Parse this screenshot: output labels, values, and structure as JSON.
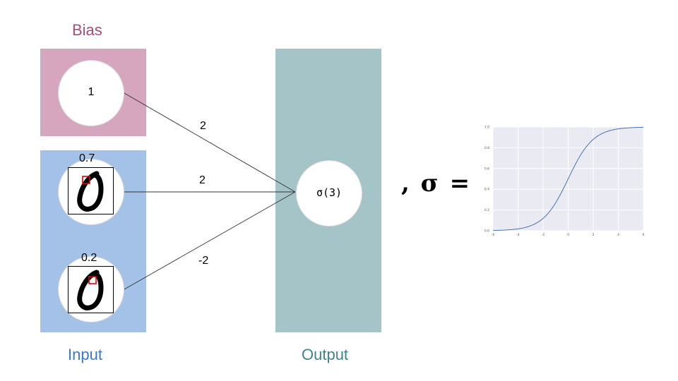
{
  "labels": {
    "bias": "Bias",
    "input": "Input",
    "output": "Output"
  },
  "bias_node": {
    "value": "1"
  },
  "input_nodes": [
    {
      "value": "0.7"
    },
    {
      "value": "0.2"
    }
  ],
  "output_node": {
    "value": "σ(3)"
  },
  "weights": [
    "2",
    "2",
    "-2"
  ],
  "sigma_equation": ", σ =",
  "colors": {
    "bias_panel": "#d5a6bd",
    "input_panel": "#a4c2e7",
    "output_panel": "#a4c4c8",
    "bias_label": "#a64d79",
    "input_label": "#3d78c7",
    "output_label": "#45818e",
    "curve": "#4c72b0",
    "plot_bg": "#eaeaf2",
    "highlight": "#e00000"
  },
  "chart_data": {
    "type": "line",
    "function": "sigmoid",
    "title": "",
    "xlabel": "",
    "ylabel": "",
    "xlim": [
      -6,
      6
    ],
    "ylim": [
      0,
      1
    ],
    "x_ticks": [
      "-6",
      "-4",
      "-2",
      "0",
      "2",
      "4",
      "6"
    ],
    "y_ticks": [
      "0.0",
      "0.2",
      "0.4",
      "0.6",
      "0.8",
      "1.0"
    ],
    "grid": true,
    "x": [
      -6,
      -5,
      -4,
      -3,
      -2,
      -1.5,
      -1,
      -0.5,
      0,
      0.5,
      1,
      1.5,
      2,
      3,
      4,
      5,
      6
    ],
    "y": [
      0.0025,
      0.0067,
      0.018,
      0.047,
      0.119,
      0.182,
      0.269,
      0.378,
      0.5,
      0.622,
      0.731,
      0.818,
      0.881,
      0.953,
      0.982,
      0.993,
      0.9975
    ]
  }
}
